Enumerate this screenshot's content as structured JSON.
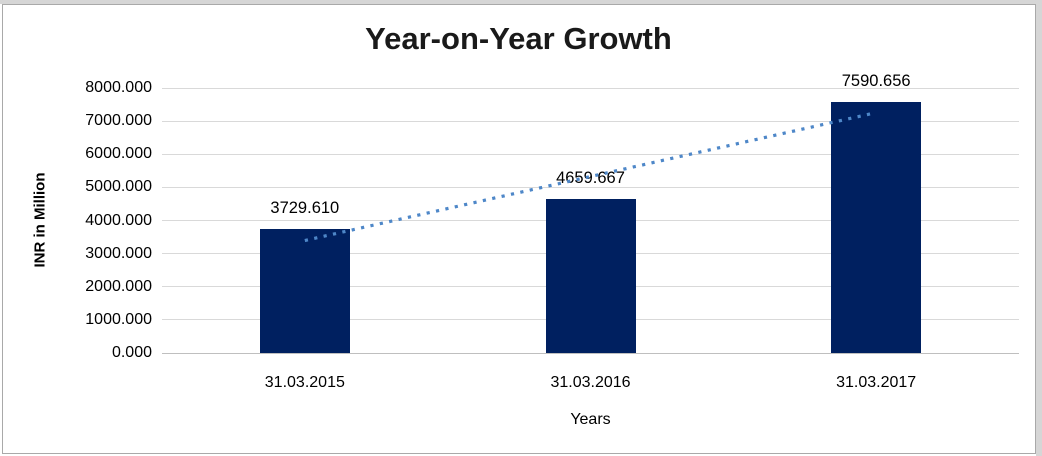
{
  "chart_data": {
    "type": "bar",
    "title": "Year-on-Year Growth",
    "xlabel": "Years",
    "ylabel": "INR in Million",
    "categories": [
      "31.03.2015",
      "31.03.2016",
      "31.03.2017"
    ],
    "values": [
      3729.61,
      4659.667,
      7590.656
    ],
    "data_labels": [
      "3729.610",
      "4659.667",
      "7590.656"
    ],
    "ylim": [
      0,
      8000
    ],
    "ytick_step": 1000,
    "ytick_labels": [
      "0.000",
      "1000.000",
      "2000.000",
      "3000.000",
      "4000.000",
      "5000.000",
      "6000.000",
      "7000.000",
      "8000.000"
    ],
    "grid": true,
    "legend": "none",
    "trendline": {
      "type": "linear",
      "style": "dotted",
      "color": "#4e87c8"
    },
    "colors": {
      "bar": "#002060",
      "gridline": "#d9d9d9",
      "axis_line": "#bfbfbf",
      "text": "#000000",
      "title": "#1a1a1a",
      "background": "#ffffff"
    }
  }
}
